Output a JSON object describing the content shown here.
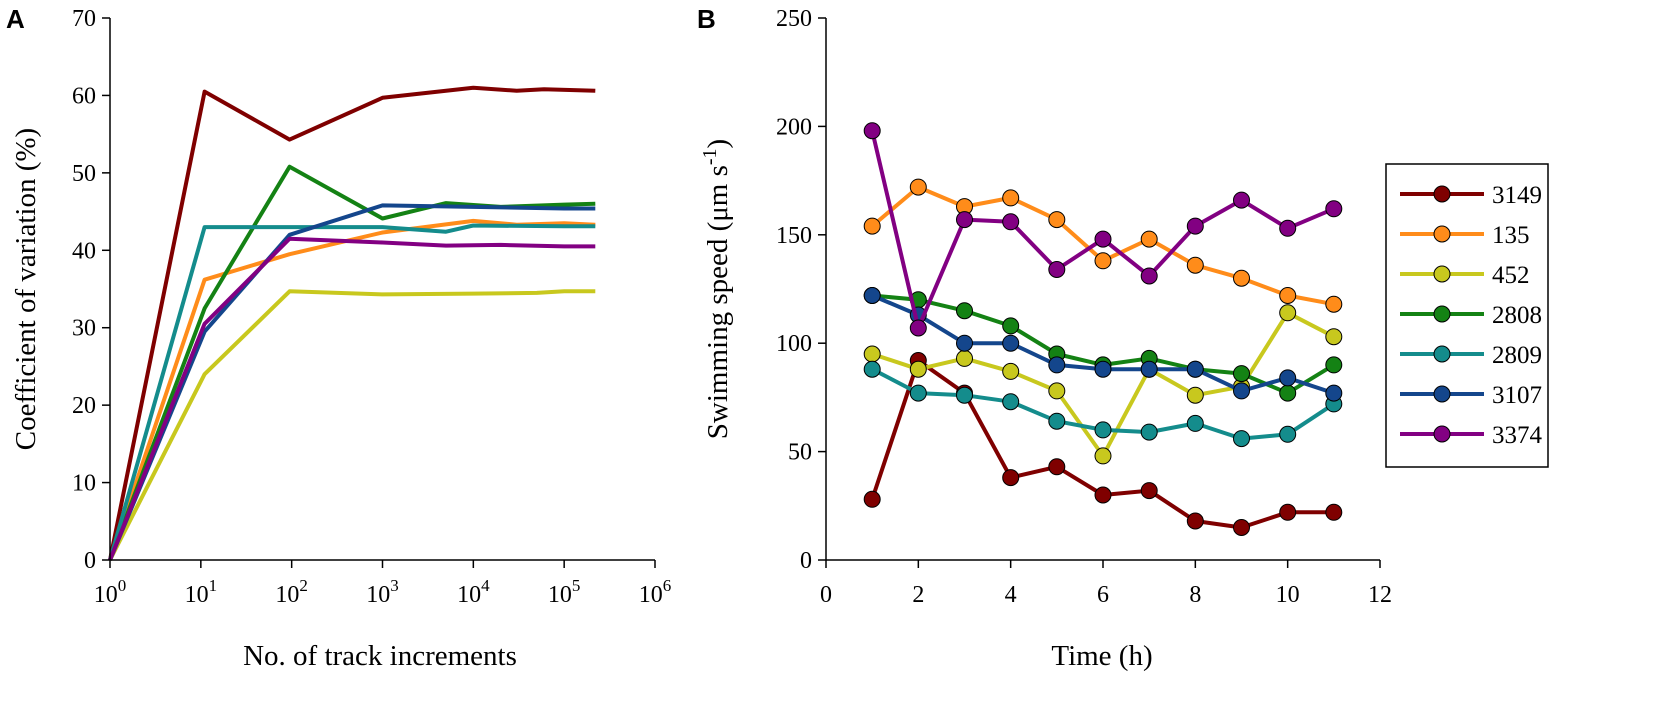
{
  "chart_data": [
    {
      "panel": "A",
      "type": "line",
      "xscale": "log",
      "xlabel": "No. of track increments",
      "ylabel": "Coefficient of variation (%)",
      "xlim_exponent": [
        0,
        6
      ],
      "ylim": [
        0,
        70
      ],
      "yticks": [
        0,
        10,
        20,
        30,
        40,
        50,
        60,
        70
      ],
      "xticks": [
        {
          "base": "10",
          "exp": "0",
          "value": 1
        },
        {
          "base": "10",
          "exp": "1",
          "value": 10
        },
        {
          "base": "10",
          "exp": "2",
          "value": 100
        },
        {
          "base": "10",
          "exp": "3",
          "value": 1000
        },
        {
          "base": "10",
          "exp": "4",
          "value": 10000
        },
        {
          "base": "10",
          "exp": "5",
          "value": 100000
        },
        {
          "base": "10",
          "exp": "6",
          "value": 1000000
        }
      ],
      "series": [
        {
          "name": "3149",
          "color": "#7f0000",
          "points": [
            [
              1,
              0
            ],
            [
              11,
              60.5
            ],
            [
              95,
              54.3
            ],
            [
              1000,
              59.7
            ],
            [
              10000,
              61
            ],
            [
              30000,
              60.6
            ],
            [
              60000,
              60.8
            ],
            [
              220000,
              60.6
            ]
          ]
        },
        {
          "name": "135",
          "color": "#ff8c1a",
          "points": [
            [
              1,
              0
            ],
            [
              11,
              36.2
            ],
            [
              95,
              39.5
            ],
            [
              1000,
              42.3
            ],
            [
              10000,
              43.8
            ],
            [
              30000,
              43.3
            ],
            [
              100000,
              43.5
            ],
            [
              220000,
              43.3
            ]
          ]
        },
        {
          "name": "452",
          "color": "#c8c81e",
          "points": [
            [
              1,
              0
            ],
            [
              11,
              24
            ],
            [
              95,
              34.7
            ],
            [
              1000,
              34.3
            ],
            [
              10000,
              34.4
            ],
            [
              50000,
              34.5
            ],
            [
              100000,
              34.7
            ],
            [
              220000,
              34.7
            ]
          ]
        },
        {
          "name": "2808",
          "color": "#148214",
          "points": [
            [
              1,
              0
            ],
            [
              11,
              32.5
            ],
            [
              95,
              50.8
            ],
            [
              1000,
              44.1
            ],
            [
              5000,
              46.1
            ],
            [
              20000,
              45.6
            ],
            [
              100000,
              45.9
            ],
            [
              220000,
              46
            ]
          ]
        },
        {
          "name": "2809",
          "color": "#148c8c",
          "points": [
            [
              1,
              0
            ],
            [
              11,
              43
            ],
            [
              95,
              43
            ],
            [
              1000,
              43
            ],
            [
              5000,
              42.4
            ],
            [
              10000,
              43.2
            ],
            [
              100000,
              43.1
            ],
            [
              220000,
              43.1
            ]
          ]
        },
        {
          "name": "3107",
          "color": "#14468c",
          "points": [
            [
              1,
              0
            ],
            [
              11,
              29.5
            ],
            [
              95,
              42
            ],
            [
              1000,
              45.8
            ],
            [
              10000,
              45.6
            ],
            [
              100000,
              45.4
            ],
            [
              220000,
              45.4
            ]
          ]
        },
        {
          "name": "3374",
          "color": "#820082",
          "points": [
            [
              1,
              0
            ],
            [
              11,
              30.5
            ],
            [
              95,
              41.5
            ],
            [
              1000,
              41
            ],
            [
              5000,
              40.6
            ],
            [
              20000,
              40.7
            ],
            [
              100000,
              40.5
            ],
            [
              220000,
              40.5
            ]
          ]
        }
      ]
    },
    {
      "panel": "B",
      "type": "line",
      "xlabel": "Time (h)",
      "ylabel": "Swimming speed (μm s",
      "ylabel_sup": "-1",
      "ylabel_close": ")",
      "xlim": [
        0,
        12
      ],
      "ylim": [
        0,
        250
      ],
      "xticks": [
        0,
        2,
        4,
        6,
        8,
        10,
        12
      ],
      "yticks": [
        0,
        50,
        100,
        150,
        200,
        250
      ],
      "x": [
        1,
        2,
        3,
        4,
        5,
        6,
        7,
        8,
        9,
        10,
        11
      ],
      "series": [
        {
          "name": "3149",
          "color": "#7f0000",
          "values": [
            28,
            92,
            77,
            38,
            43,
            30,
            32,
            18,
            15,
            22,
            22
          ]
        },
        {
          "name": "135",
          "color": "#ff8c1a",
          "values": [
            154,
            172,
            163,
            167,
            157,
            138,
            148,
            136,
            130,
            122,
            118
          ]
        },
        {
          "name": "452",
          "color": "#c8c81e",
          "values": [
            95,
            88,
            93,
            87,
            78,
            48,
            88,
            76,
            80,
            114,
            103
          ]
        },
        {
          "name": "2808",
          "color": "#148214",
          "values": [
            122,
            120,
            115,
            108,
            95,
            90,
            93,
            88,
            86,
            77,
            90
          ]
        },
        {
          "name": "2809",
          "color": "#148c8c",
          "values": [
            88,
            77,
            76,
            73,
            64,
            60,
            59,
            63,
            56,
            58,
            72
          ]
        },
        {
          "name": "3107",
          "color": "#14468c",
          "values": [
            122,
            113,
            100,
            100,
            90,
            88,
            88,
            88,
            78,
            84,
            77
          ]
        },
        {
          "name": "3374",
          "color": "#820082",
          "values": [
            198,
            107,
            157,
            156,
            134,
            148,
            131,
            154,
            166,
            153,
            162
          ]
        }
      ],
      "legend": {
        "placement": "right",
        "entries": [
          "3149",
          "135",
          "452",
          "2808",
          "2809",
          "3107",
          "3374"
        ]
      }
    }
  ]
}
